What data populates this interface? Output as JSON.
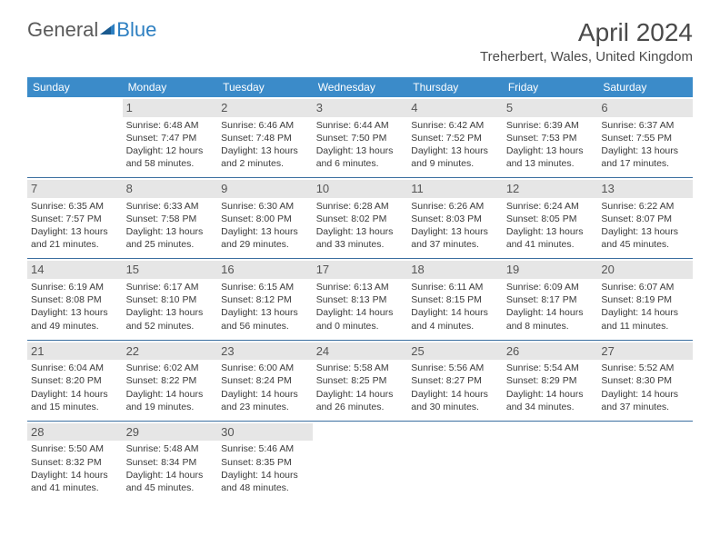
{
  "logo": {
    "text1": "General",
    "text2": "Blue"
  },
  "title": "April 2024",
  "location": "Treherbert, Wales, United Kingdom",
  "dow_labels": [
    "Sunday",
    "Monday",
    "Tuesday",
    "Wednesday",
    "Thursday",
    "Friday",
    "Saturday"
  ],
  "colors": {
    "header_bg": "#3b8bc9",
    "header_fg": "#ffffff",
    "row_border": "#3b6fa0",
    "daynum_bg": "#e6e6e6",
    "text": "#3a3a3a",
    "logo_gray": "#5a5a5a",
    "logo_blue": "#2d7fc1"
  },
  "weeks": [
    [
      {
        "n": "",
        "sr": "",
        "ss": "",
        "d1": "",
        "d2": "",
        "empty": true
      },
      {
        "n": "1",
        "sr": "Sunrise: 6:48 AM",
        "ss": "Sunset: 7:47 PM",
        "d1": "Daylight: 12 hours",
        "d2": "and 58 minutes."
      },
      {
        "n": "2",
        "sr": "Sunrise: 6:46 AM",
        "ss": "Sunset: 7:48 PM",
        "d1": "Daylight: 13 hours",
        "d2": "and 2 minutes."
      },
      {
        "n": "3",
        "sr": "Sunrise: 6:44 AM",
        "ss": "Sunset: 7:50 PM",
        "d1": "Daylight: 13 hours",
        "d2": "and 6 minutes."
      },
      {
        "n": "4",
        "sr": "Sunrise: 6:42 AM",
        "ss": "Sunset: 7:52 PM",
        "d1": "Daylight: 13 hours",
        "d2": "and 9 minutes."
      },
      {
        "n": "5",
        "sr": "Sunrise: 6:39 AM",
        "ss": "Sunset: 7:53 PM",
        "d1": "Daylight: 13 hours",
        "d2": "and 13 minutes."
      },
      {
        "n": "6",
        "sr": "Sunrise: 6:37 AM",
        "ss": "Sunset: 7:55 PM",
        "d1": "Daylight: 13 hours",
        "d2": "and 17 minutes."
      }
    ],
    [
      {
        "n": "7",
        "sr": "Sunrise: 6:35 AM",
        "ss": "Sunset: 7:57 PM",
        "d1": "Daylight: 13 hours",
        "d2": "and 21 minutes."
      },
      {
        "n": "8",
        "sr": "Sunrise: 6:33 AM",
        "ss": "Sunset: 7:58 PM",
        "d1": "Daylight: 13 hours",
        "d2": "and 25 minutes."
      },
      {
        "n": "9",
        "sr": "Sunrise: 6:30 AM",
        "ss": "Sunset: 8:00 PM",
        "d1": "Daylight: 13 hours",
        "d2": "and 29 minutes."
      },
      {
        "n": "10",
        "sr": "Sunrise: 6:28 AM",
        "ss": "Sunset: 8:02 PM",
        "d1": "Daylight: 13 hours",
        "d2": "and 33 minutes."
      },
      {
        "n": "11",
        "sr": "Sunrise: 6:26 AM",
        "ss": "Sunset: 8:03 PM",
        "d1": "Daylight: 13 hours",
        "d2": "and 37 minutes."
      },
      {
        "n": "12",
        "sr": "Sunrise: 6:24 AM",
        "ss": "Sunset: 8:05 PM",
        "d1": "Daylight: 13 hours",
        "d2": "and 41 minutes."
      },
      {
        "n": "13",
        "sr": "Sunrise: 6:22 AM",
        "ss": "Sunset: 8:07 PM",
        "d1": "Daylight: 13 hours",
        "d2": "and 45 minutes."
      }
    ],
    [
      {
        "n": "14",
        "sr": "Sunrise: 6:19 AM",
        "ss": "Sunset: 8:08 PM",
        "d1": "Daylight: 13 hours",
        "d2": "and 49 minutes."
      },
      {
        "n": "15",
        "sr": "Sunrise: 6:17 AM",
        "ss": "Sunset: 8:10 PM",
        "d1": "Daylight: 13 hours",
        "d2": "and 52 minutes."
      },
      {
        "n": "16",
        "sr": "Sunrise: 6:15 AM",
        "ss": "Sunset: 8:12 PM",
        "d1": "Daylight: 13 hours",
        "d2": "and 56 minutes."
      },
      {
        "n": "17",
        "sr": "Sunrise: 6:13 AM",
        "ss": "Sunset: 8:13 PM",
        "d1": "Daylight: 14 hours",
        "d2": "and 0 minutes."
      },
      {
        "n": "18",
        "sr": "Sunrise: 6:11 AM",
        "ss": "Sunset: 8:15 PM",
        "d1": "Daylight: 14 hours",
        "d2": "and 4 minutes."
      },
      {
        "n": "19",
        "sr": "Sunrise: 6:09 AM",
        "ss": "Sunset: 8:17 PM",
        "d1": "Daylight: 14 hours",
        "d2": "and 8 minutes."
      },
      {
        "n": "20",
        "sr": "Sunrise: 6:07 AM",
        "ss": "Sunset: 8:19 PM",
        "d1": "Daylight: 14 hours",
        "d2": "and 11 minutes."
      }
    ],
    [
      {
        "n": "21",
        "sr": "Sunrise: 6:04 AM",
        "ss": "Sunset: 8:20 PM",
        "d1": "Daylight: 14 hours",
        "d2": "and 15 minutes."
      },
      {
        "n": "22",
        "sr": "Sunrise: 6:02 AM",
        "ss": "Sunset: 8:22 PM",
        "d1": "Daylight: 14 hours",
        "d2": "and 19 minutes."
      },
      {
        "n": "23",
        "sr": "Sunrise: 6:00 AM",
        "ss": "Sunset: 8:24 PM",
        "d1": "Daylight: 14 hours",
        "d2": "and 23 minutes."
      },
      {
        "n": "24",
        "sr": "Sunrise: 5:58 AM",
        "ss": "Sunset: 8:25 PM",
        "d1": "Daylight: 14 hours",
        "d2": "and 26 minutes."
      },
      {
        "n": "25",
        "sr": "Sunrise: 5:56 AM",
        "ss": "Sunset: 8:27 PM",
        "d1": "Daylight: 14 hours",
        "d2": "and 30 minutes."
      },
      {
        "n": "26",
        "sr": "Sunrise: 5:54 AM",
        "ss": "Sunset: 8:29 PM",
        "d1": "Daylight: 14 hours",
        "d2": "and 34 minutes."
      },
      {
        "n": "27",
        "sr": "Sunrise: 5:52 AM",
        "ss": "Sunset: 8:30 PM",
        "d1": "Daylight: 14 hours",
        "d2": "and 37 minutes."
      }
    ],
    [
      {
        "n": "28",
        "sr": "Sunrise: 5:50 AM",
        "ss": "Sunset: 8:32 PM",
        "d1": "Daylight: 14 hours",
        "d2": "and 41 minutes."
      },
      {
        "n": "29",
        "sr": "Sunrise: 5:48 AM",
        "ss": "Sunset: 8:34 PM",
        "d1": "Daylight: 14 hours",
        "d2": "and 45 minutes."
      },
      {
        "n": "30",
        "sr": "Sunrise: 5:46 AM",
        "ss": "Sunset: 8:35 PM",
        "d1": "Daylight: 14 hours",
        "d2": "and 48 minutes."
      },
      {
        "n": "",
        "sr": "",
        "ss": "",
        "d1": "",
        "d2": "",
        "empty": true
      },
      {
        "n": "",
        "sr": "",
        "ss": "",
        "d1": "",
        "d2": "",
        "empty": true
      },
      {
        "n": "",
        "sr": "",
        "ss": "",
        "d1": "",
        "d2": "",
        "empty": true
      },
      {
        "n": "",
        "sr": "",
        "ss": "",
        "d1": "",
        "d2": "",
        "empty": true
      }
    ]
  ]
}
